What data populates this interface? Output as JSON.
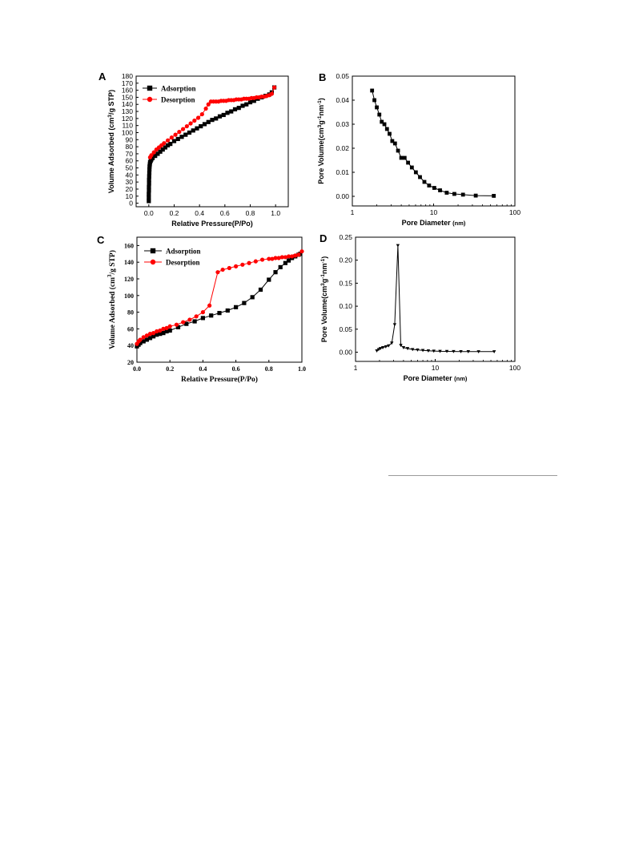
{
  "chart_data": [
    {
      "panel": "A",
      "type": "line",
      "xlabel": "Relative Pressure(P/Po)",
      "ylabel": "Volume Adsorbed (cm3/g STP)",
      "ylabel_parts": [
        "Volume Adsorbed (cm",
        "3",
        "/g STP)"
      ],
      "xlim": [
        -0.1,
        1.1
      ],
      "ylim": [
        -5,
        180
      ],
      "xticks": [
        0.0,
        0.2,
        0.4,
        0.6,
        0.8,
        1.0
      ],
      "xtick_labels": [
        "0.0",
        "0.2",
        "0.4",
        "0.6",
        "0.8",
        "1.0"
      ],
      "yticks": [
        0,
        10,
        20,
        30,
        40,
        50,
        60,
        70,
        80,
        90,
        100,
        110,
        120,
        130,
        140,
        150,
        160,
        170,
        180
      ],
      "ytick_labels": [
        "0",
        "10",
        "20",
        "30",
        "40",
        "50",
        "60",
        "70",
        "80",
        "90",
        "100",
        "110",
        "120",
        "130",
        "140",
        "150",
        "160",
        "170",
        "180"
      ],
      "legend": "top-left",
      "series": [
        {
          "name": "Adsorption",
          "color": "#000000",
          "marker": "square",
          "x": [
            0.0,
            0.0,
            0.0,
            0.001,
            0.001,
            0.002,
            0.002,
            0.003,
            0.004,
            0.005,
            0.006,
            0.008,
            0.01,
            0.015,
            0.02,
            0.03,
            0.05,
            0.07,
            0.09,
            0.11,
            0.13,
            0.15,
            0.17,
            0.2,
            0.23,
            0.26,
            0.29,
            0.32,
            0.35,
            0.38,
            0.41,
            0.44,
            0.47,
            0.5,
            0.53,
            0.56,
            0.59,
            0.62,
            0.65,
            0.68,
            0.71,
            0.74,
            0.77,
            0.8,
            0.83,
            0.86,
            0.89,
            0.92,
            0.95,
            0.97,
            0.99
          ],
          "y": [
            3,
            8,
            13,
            18,
            23,
            28,
            33,
            38,
            43,
            48,
            52,
            55,
            58,
            60,
            62,
            64,
            67,
            70,
            73,
            76,
            79,
            82,
            84,
            88,
            91,
            94,
            97,
            100,
            103,
            106,
            109,
            112,
            115,
            118,
            120,
            123,
            125,
            128,
            130,
            133,
            135,
            138,
            140,
            143,
            145,
            148,
            150,
            152,
            154,
            157,
            164
          ]
        },
        {
          "name": "Desorption",
          "color": "#ff0000",
          "marker": "circle",
          "x": [
            0.99,
            0.97,
            0.95,
            0.93,
            0.91,
            0.89,
            0.87,
            0.85,
            0.83,
            0.81,
            0.79,
            0.77,
            0.75,
            0.73,
            0.71,
            0.69,
            0.67,
            0.65,
            0.63,
            0.61,
            0.59,
            0.57,
            0.55,
            0.53,
            0.51,
            0.49,
            0.47,
            0.45,
            0.42,
            0.39,
            0.36,
            0.33,
            0.3,
            0.27,
            0.24,
            0.21,
            0.18,
            0.15,
            0.12,
            0.1,
            0.08,
            0.06,
            0.04,
            0.02,
            0.01
          ],
          "y": [
            164,
            155,
            153,
            152,
            151,
            151,
            150,
            150,
            149,
            149,
            148,
            148,
            148,
            147,
            147,
            147,
            146,
            146,
            146,
            145,
            145,
            145,
            144,
            144,
            144,
            144,
            140,
            134,
            126,
            121,
            117,
            113,
            109,
            105,
            101,
            97,
            93,
            89,
            85,
            82,
            79,
            76,
            72,
            68,
            65
          ]
        }
      ]
    },
    {
      "panel": "B",
      "type": "line",
      "xlabel": "Pore Diameter (nm)",
      "ylabel": "Pore Volume(cm3g-1nm-1)",
      "ylabel_parts": [
        "Pore Volume(cm",
        "3",
        "g",
        "-1",
        "nm",
        "-1",
        ")"
      ],
      "xscale": "log",
      "xlim": [
        1,
        100
      ],
      "ylim": [
        -0.004,
        0.05
      ],
      "xticks": [
        1,
        10,
        100
      ],
      "xtick_labels": [
        "1",
        "10",
        "100"
      ],
      "yticks": [
        0.0,
        0.01,
        0.02,
        0.03,
        0.04,
        0.05
      ],
      "ytick_labels": [
        "0.00",
        "0.01",
        "0.02",
        "0.03",
        "0.04",
        "0.05"
      ],
      "series": [
        {
          "color": "#000000",
          "marker": "square",
          "x": [
            1.75,
            1.87,
            2.0,
            2.15,
            2.3,
            2.48,
            2.67,
            2.87,
            3.1,
            3.35,
            3.65,
            4.0,
            4.4,
            4.85,
            5.4,
            6.05,
            6.8,
            7.7,
            8.8,
            10.2,
            12.0,
            14.5,
            18.0,
            23.0,
            33.0,
            55.0
          ],
          "y": [
            0.044,
            0.04,
            0.037,
            0.034,
            0.031,
            0.03,
            0.028,
            0.026,
            0.023,
            0.022,
            0.019,
            0.016,
            0.016,
            0.014,
            0.012,
            0.01,
            0.008,
            0.006,
            0.0045,
            0.0035,
            0.0025,
            0.0015,
            0.001,
            0.0007,
            0.0003,
            0.0002
          ]
        }
      ]
    },
    {
      "panel": "C",
      "type": "line",
      "xlabel": "Relative Pressure(P/Po)",
      "ylabel": "Volume Adsorbed (cm3/g STP)",
      "ylabel_parts": [
        "Volume Adsorbed (cm",
        "3",
        "/g STP)"
      ],
      "xlim": [
        0.0,
        1.0
      ],
      "ylim": [
        20,
        170
      ],
      "xticks": [
        0.0,
        0.2,
        0.4,
        0.6,
        0.8,
        1.0
      ],
      "xtick_labels": [
        "0.0",
        "0.2",
        "0.4",
        "0.6",
        "0.8",
        "1.0"
      ],
      "yticks": [
        20,
        40,
        60,
        80,
        100,
        120,
        140,
        160
      ],
      "ytick_labels": [
        "20",
        "40",
        "60",
        "80",
        "100",
        "120",
        "140",
        "160"
      ],
      "legend": "top-left",
      "series": [
        {
          "name": "Adsorption",
          "color": "#000000",
          "marker": "square",
          "x": [
            0.0,
            0.01,
            0.02,
            0.04,
            0.06,
            0.08,
            0.1,
            0.12,
            0.14,
            0.16,
            0.18,
            0.2,
            0.25,
            0.3,
            0.35,
            0.4,
            0.45,
            0.5,
            0.55,
            0.6,
            0.65,
            0.7,
            0.75,
            0.8,
            0.84,
            0.87,
            0.9,
            0.92,
            0.94,
            0.96,
            0.98,
            0.99
          ],
          "y": [
            39,
            41,
            43,
            45,
            47,
            49,
            51,
            53,
            54,
            55,
            57,
            58,
            62,
            66,
            69,
            73,
            76,
            79,
            82,
            86,
            91,
            98,
            107,
            119,
            128,
            134,
            139,
            142,
            145,
            147,
            149,
            150
          ]
        },
        {
          "name": "Desorption",
          "color": "#ff0000",
          "marker": "circle",
          "x": [
            1.0,
            0.98,
            0.96,
            0.94,
            0.92,
            0.9,
            0.88,
            0.86,
            0.84,
            0.82,
            0.8,
            0.76,
            0.72,
            0.68,
            0.64,
            0.6,
            0.56,
            0.52,
            0.49,
            0.44,
            0.4,
            0.36,
            0.32,
            0.28,
            0.24,
            0.2,
            0.18,
            0.16,
            0.14,
            0.12,
            0.1,
            0.08,
            0.06,
            0.04,
            0.02,
            0.01,
            0.0
          ],
          "y": [
            153,
            149,
            148,
            147,
            147,
            146,
            146,
            145,
            145,
            144,
            144,
            143,
            141,
            139,
            137,
            135,
            133,
            131,
            128,
            88,
            80,
            75,
            71,
            68,
            65,
            63,
            61,
            60,
            58,
            57,
            55,
            54,
            52,
            50,
            47,
            45,
            42
          ]
        }
      ]
    },
    {
      "panel": "D",
      "type": "line",
      "xlabel": "Pore Diameter (nm)",
      "ylabel": "Pore Volume(cm3g-1nm-1)",
      "ylabel_parts": [
        "Pore Volume(cm",
        "3",
        "g",
        "-1",
        "nm",
        "-1",
        ")"
      ],
      "xscale": "log",
      "xlim": [
        1,
        100
      ],
      "ylim": [
        -0.02,
        0.25
      ],
      "xticks": [
        1,
        10,
        100
      ],
      "xtick_labels": [
        "1",
        "10",
        "100"
      ],
      "yticks": [
        0.0,
        0.05,
        0.1,
        0.15,
        0.2,
        0.25
      ],
      "ytick_labels": [
        "0.00",
        "0.05",
        "0.10",
        "0.15",
        "0.20",
        "0.25"
      ],
      "series": [
        {
          "color": "#000000",
          "marker": "triangle",
          "x": [
            1.85,
            1.95,
            2.05,
            2.2,
            2.4,
            2.6,
            2.85,
            3.1,
            3.4,
            3.7,
            4.0,
            4.5,
            5.2,
            6.0,
            7.0,
            8.2,
            9.6,
            11.5,
            14.0,
            17.0,
            21.0,
            26.0,
            35.0,
            55.0
          ],
          "y": [
            0.003,
            0.006,
            0.008,
            0.01,
            0.012,
            0.014,
            0.02,
            0.06,
            0.232,
            0.015,
            0.01,
            0.008,
            0.006,
            0.005,
            0.004,
            0.003,
            0.0025,
            0.002,
            0.0018,
            0.0016,
            0.0014,
            0.0013,
            0.0012,
            0.0012
          ]
        }
      ]
    }
  ]
}
